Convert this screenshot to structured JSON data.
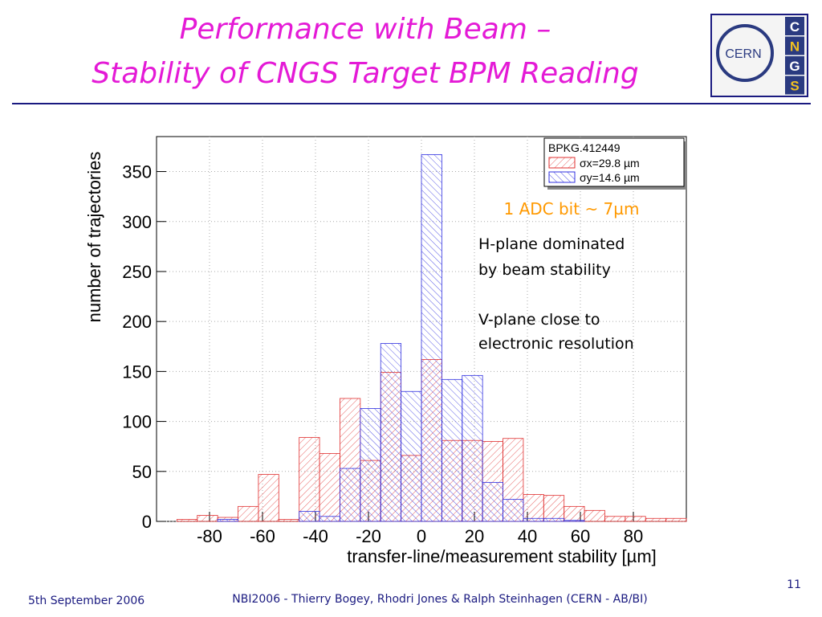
{
  "slide": {
    "title_lines": [
      "Performance with Beam –",
      "Stability of CNGS Target BPM Reading"
    ],
    "logo": {
      "text": "CERN",
      "letters": [
        "C",
        "N",
        "G",
        "S"
      ]
    },
    "footer": {
      "date": "5th September 2006",
      "credits": "NBI2006 - Thierry Bogey, Rhodri Jones & Ralph Steinhagen (CERN - AB/BI)",
      "page": "11"
    }
  },
  "chart_data": {
    "type": "histogram",
    "xlabel": "transfer-line/measurement stability [µm]",
    "ylabel": "number of trajectories",
    "legend_title": "BPKG.412449",
    "bins": [
      -100,
      -92.31,
      -84.62,
      -76.92,
      -69.23,
      -61.54,
      -53.85,
      -46.15,
      -38.46,
      -30.77,
      -23.08,
      -15.38,
      -7.69,
      0,
      7.69,
      15.38,
      23.08,
      30.77,
      38.46,
      46.15,
      53.85,
      61.54,
      69.23,
      76.92,
      84.62,
      92.31,
      100
    ],
    "series": [
      {
        "name": "σx=29.8 µm",
        "color": "#e03030",
        "values": [
          0,
          2,
          6,
          4,
          15,
          47,
          2,
          84,
          68,
          123,
          61,
          149,
          66,
          162,
          81,
          81,
          80,
          83,
          27,
          26,
          15,
          11,
          5,
          5,
          3,
          3
        ]
      },
      {
        "name": "σy=14.6 µm",
        "color": "#3030e0",
        "values": [
          0,
          0,
          0,
          2,
          0,
          0,
          0,
          10,
          5,
          53,
          113,
          178,
          130,
          367,
          142,
          146,
          39,
          22,
          3,
          3,
          1,
          0,
          0,
          0,
          0,
          0
        ]
      }
    ],
    "xlim": [
      -100,
      100
    ],
    "ylim": [
      0,
      385
    ],
    "xticks": [
      -80,
      -60,
      -40,
      -20,
      0,
      20,
      40,
      60,
      80
    ],
    "yticks": [
      0,
      50,
      100,
      150,
      200,
      250,
      300,
      350
    ],
    "grid": true,
    "annotations": [
      "1 ADC bit ~ 7µm",
      "H-plane dominated",
      "by beam stability",
      "V-plane close to",
      "electronic resolution"
    ]
  }
}
